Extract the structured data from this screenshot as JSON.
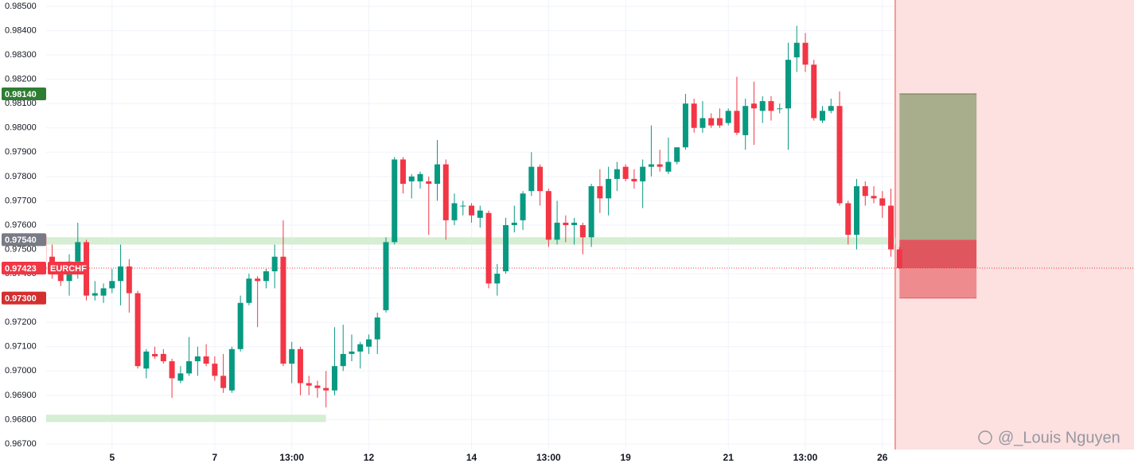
{
  "chart_data": {
    "type": "candlestick",
    "symbol": "EURCHF",
    "up_color": "#089981",
    "down_color": "#f23645",
    "xlim": [
      0.3,
      127.4
    ],
    "ylim": [
      0.96677,
      0.98526
    ],
    "grid": true,
    "xticks": [
      {
        "value": 8,
        "label": "5"
      },
      {
        "value": 20,
        "label": "7"
      },
      {
        "value": 29,
        "label": "13:00"
      },
      {
        "value": 38,
        "label": "12"
      },
      {
        "value": 50,
        "label": "14"
      },
      {
        "value": 59,
        "label": "13:00"
      },
      {
        "value": 68,
        "label": "19"
      },
      {
        "value": 80,
        "label": "21"
      },
      {
        "value": 89,
        "label": "13:00"
      },
      {
        "value": 98,
        "label": "26"
      }
    ],
    "yticks": [
      {
        "value": 0.967,
        "label": "0.96700"
      },
      {
        "value": 0.968,
        "label": "0.96800"
      },
      {
        "value": 0.969,
        "label": "0.96900"
      },
      {
        "value": 0.97,
        "label": "0.97000"
      },
      {
        "value": 0.971,
        "label": "0.97100"
      },
      {
        "value": 0.972,
        "label": "0.97200"
      },
      {
        "value": 0.973,
        "label": "0.97300"
      },
      {
        "value": 0.974,
        "label": "0.97400"
      },
      {
        "value": 0.975,
        "label": "0.97500"
      },
      {
        "value": 0.976,
        "label": "0.97600"
      },
      {
        "value": 0.977,
        "label": "0.97700"
      },
      {
        "value": 0.978,
        "label": "0.97800"
      },
      {
        "value": 0.979,
        "label": "0.97900"
      },
      {
        "value": 0.98,
        "label": "0.98000"
      },
      {
        "value": 0.981,
        "label": "0.98100"
      },
      {
        "value": 0.982,
        "label": "0.98200"
      },
      {
        "value": 0.983,
        "label": "0.98300"
      },
      {
        "value": 0.984,
        "label": "0.98400"
      },
      {
        "value": 0.985,
        "label": "0.98500"
      }
    ],
    "open": [
      0.9756,
      0.9747,
      0.9742,
      0.9737,
      0.9745,
      0.9753,
      0.9731,
      0.9731,
      0.9734,
      0.9737,
      0.9743,
      0.9732,
      0.9701,
      0.9707,
      0.9707,
      0.9704,
      0.9696,
      0.9699,
      0.9704,
      0.9706,
      0.9703,
      0.9698,
      0.9692,
      0.9709,
      0.9728,
      0.9738,
      0.9737,
      0.9741,
      0.9747,
      0.9703,
      0.9709,
      0.9695,
      0.9694,
      0.9693,
      0.9692,
      0.9702,
      0.9707,
      0.9708,
      0.971,
      0.9713,
      0.9725,
      0.9753,
      0.9787,
      0.9778,
      0.9778,
      0.9778,
      0.9777,
      0.9785,
      0.9762,
      0.9768,
      0.9768,
      0.9763,
      0.9765,
      0.9736,
      0.9741,
      0.976,
      0.9762,
      0.9774,
      0.9784,
      0.9774,
      0.9754,
      0.9761,
      0.976,
      0.976,
      0.9755,
      0.9776,
      0.9771,
      0.9779,
      0.9784,
      0.9779,
      0.9778,
      0.9784,
      0.9785,
      0.9782,
      0.9786,
      0.9792,
      0.981,
      0.98,
      0.9804,
      0.9804,
      0.9802,
      0.9807,
      0.9797,
      0.981,
      0.9807,
      0.9811,
      0.9808,
      0.9808,
      0.9829,
      0.9835,
      0.9826,
      0.9803,
      0.9807,
      0.9809,
      0.9769,
      0.9756,
      0.9776,
      0.9772,
      0.9771,
      0.9768,
      0.975
    ],
    "high": [
      0.976,
      0.9752,
      0.9745,
      0.9748,
      0.9761,
      0.9754,
      0.9737,
      0.9736,
      0.9742,
      0.9752,
      0.9746,
      0.9733,
      0.9709,
      0.971,
      0.9709,
      0.9705,
      0.9702,
      0.9714,
      0.971,
      0.9711,
      0.9706,
      0.9707,
      0.971,
      0.9731,
      0.974,
      0.9739,
      0.9742,
      0.9752,
      0.9762,
      0.9712,
      0.971,
      0.9698,
      0.9696,
      0.97,
      0.9718,
      0.9719,
      0.9715,
      0.9712,
      0.9715,
      0.9724,
      0.9755,
      0.9788,
      0.9788,
      0.9781,
      0.9782,
      0.978,
      0.9795,
      0.9787,
      0.9773,
      0.977,
      0.9769,
      0.9768,
      0.9766,
      0.9744,
      0.9763,
      0.9768,
      0.9774,
      0.979,
      0.9785,
      0.9775,
      0.977,
      0.9764,
      0.9763,
      0.9761,
      0.9777,
      0.9783,
      0.9784,
      0.9786,
      0.9785,
      0.9783,
      0.9787,
      0.9801,
      0.9791,
      0.9796,
      0.9792,
      0.9814,
      0.9812,
      0.9811,
      0.9806,
      0.9808,
      0.9808,
      0.9821,
      0.9812,
      0.9819,
      0.9813,
      0.9813,
      0.981,
      0.9835,
      0.9842,
      0.9839,
      0.9828,
      0.9809,
      0.9812,
      0.9815,
      0.977,
      0.9779,
      0.9778,
      0.9776,
      0.9774,
      0.9775,
      0.9751
    ],
    "low": [
      0.9742,
      0.9738,
      0.9735,
      0.9731,
      0.9738,
      0.9729,
      0.9729,
      0.9728,
      0.9732,
      0.9727,
      0.9724,
      0.9701,
      0.9697,
      0.9705,
      0.9703,
      0.9689,
      0.9695,
      0.9698,
      0.9698,
      0.9702,
      0.9696,
      0.9691,
      0.9691,
      0.9708,
      0.9727,
      0.9718,
      0.9734,
      0.9734,
      0.9702,
      0.9695,
      0.969,
      0.969,
      0.9689,
      0.9685,
      0.969,
      0.97,
      0.9704,
      0.9701,
      0.9707,
      0.9707,
      0.9724,
      0.9752,
      0.9773,
      0.9771,
      0.9775,
      0.9756,
      0.977,
      0.9754,
      0.976,
      0.9764,
      0.9761,
      0.9759,
      0.9734,
      0.9731,
      0.974,
      0.9757,
      0.9758,
      0.9772,
      0.9768,
      0.9751,
      0.9752,
      0.9753,
      0.9752,
      0.9748,
      0.9751,
      0.9765,
      0.9764,
      0.9774,
      0.9778,
      0.9775,
      0.9767,
      0.978,
      0.9782,
      0.9781,
      0.9785,
      0.9791,
      0.9798,
      0.9798,
      0.98,
      0.98,
      0.9801,
      0.9797,
      0.9791,
      0.9793,
      0.9802,
      0.9803,
      0.9806,
      0.9791,
      0.9823,
      0.9823,
      0.9803,
      0.9802,
      0.9806,
      0.9768,
      0.9752,
      0.975,
      0.9768,
      0.9769,
      0.9763,
      0.9747,
      0.9742
    ],
    "close": [
      0.9745,
      0.974,
      0.9737,
      0.9745,
      0.9753,
      0.9731,
      0.9732,
      0.9734,
      0.9737,
      0.9743,
      0.9732,
      0.9702,
      0.9708,
      0.9706,
      0.9704,
      0.9697,
      0.9699,
      0.9704,
      0.9706,
      0.9703,
      0.9698,
      0.9693,
      0.9709,
      0.9728,
      0.9738,
      0.9737,
      0.9741,
      0.9747,
      0.9703,
      0.9709,
      0.9695,
      0.9694,
      0.9693,
      0.9692,
      0.9702,
      0.9707,
      0.9708,
      0.9711,
      0.9713,
      0.9722,
      0.9753,
      0.9787,
      0.9777,
      0.978,
      0.9781,
      0.9777,
      0.9785,
      0.9762,
      0.9769,
      0.9768,
      0.9764,
      0.9766,
      0.9736,
      0.974,
      0.976,
      0.9761,
      0.9773,
      0.9784,
      0.9774,
      0.9754,
      0.9761,
      0.976,
      0.9761,
      0.9755,
      0.9776,
      0.9771,
      0.9779,
      0.9783,
      0.9779,
      0.9778,
      0.9784,
      0.9785,
      0.9784,
      0.9786,
      0.9792,
      0.981,
      0.98,
      0.9804,
      0.9801,
      0.9801,
      0.9807,
      0.9798,
      0.9809,
      0.9808,
      0.9811,
      0.9807,
      0.9808,
      0.9828,
      0.9835,
      0.9826,
      0.9804,
      0.9807,
      0.9809,
      0.9769,
      0.9756,
      0.9776,
      0.9772,
      0.9771,
      0.9768,
      0.975,
      0.97423
    ],
    "zones": [
      {
        "low": 0.9752,
        "high": 0.9755,
        "from": 0,
        "to": 99.5,
        "color": "#d6eed3"
      },
      {
        "low": 0.9679,
        "high": 0.9682,
        "from": 0,
        "to": 33,
        "color": "#d6eed3"
      }
    ],
    "now": 99.5,
    "now_color": "#f77c80",
    "future_fill": "#fde0e0",
    "position": {
      "from": 100,
      "to": 109,
      "target": {
        "value": 0.9814,
        "label": "0.98140",
        "color": "#2e7d32"
      },
      "entry": {
        "value": 0.9754,
        "label": "0.97540",
        "color": "#787b86"
      },
      "stop": {
        "value": 0.973,
        "label": "0.97300",
        "color": "#d32f2f"
      },
      "profit_fill": "#a8ad8c",
      "loss_fill": "#e0565f",
      "loss_fill_light": "#ee8b8f"
    },
    "current": {
      "value": 0.97423,
      "label": "0.97423",
      "color": "#f23645"
    },
    "watermark": "@_Louis Nguyen"
  }
}
